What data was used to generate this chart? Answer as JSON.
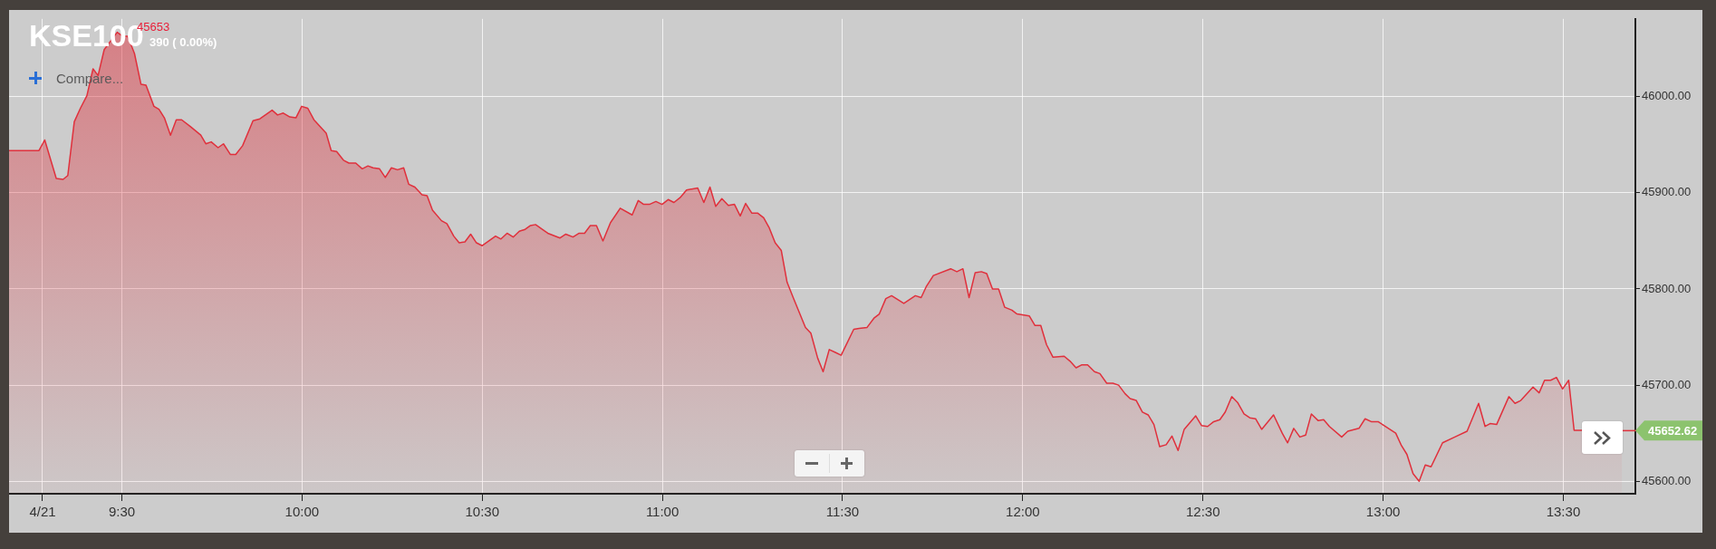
{
  "chart_data": {
    "type": "area",
    "title": "KSE100",
    "subtitle": "45653",
    "annotations": [
      "390 ( 0.00%)",
      "Compare...",
      {
        "text": "45652.62",
        "x": 13.663,
        "y": 45652.62
      }
    ],
    "color": "#e0303c",
    "marker": "none",
    "line_style": "solid",
    "grid": true,
    "xlim": [
      9.187,
      13.7
    ],
    "ylim": [
      45587,
      46081
    ],
    "xticks": [
      {
        "value": 9.28,
        "label": "4/21"
      },
      {
        "value": 9.5,
        "label": "9:30"
      },
      {
        "value": 10,
        "label": "10:00"
      },
      {
        "value": 10.5,
        "label": "10:30"
      },
      {
        "value": 11,
        "label": "11:00"
      },
      {
        "value": 11.5,
        "label": "11:30"
      },
      {
        "value": 12,
        "label": "12:00"
      },
      {
        "value": 12.5,
        "label": "12:30"
      },
      {
        "value": 13,
        "label": "13:00"
      },
      {
        "value": 13.5,
        "label": "13:30"
      }
    ],
    "yticks": [
      {
        "value": 45600,
        "label": "45600.00"
      },
      {
        "value": 45700,
        "label": "45700.00"
      },
      {
        "value": 45800,
        "label": "45800.00"
      },
      {
        "value": 45900,
        "label": "45900.00"
      },
      {
        "value": 46000,
        "label": "46000.00"
      }
    ],
    "x": [
      9.187,
      9.27,
      9.286,
      9.318,
      9.337,
      9.35,
      9.368,
      9.385,
      9.403,
      9.42,
      9.434,
      9.451,
      9.465,
      9.487,
      9.502,
      9.516,
      9.535,
      9.553,
      9.567,
      9.589,
      9.603,
      9.618,
      9.635,
      9.651,
      9.666,
      9.69,
      9.719,
      9.733,
      9.748,
      9.767,
      9.782,
      9.801,
      9.816,
      9.835,
      9.864,
      9.883,
      9.917,
      9.932,
      9.948,
      9.966,
      9.983,
      9.999,
      10.016,
      10.033,
      10.067,
      10.081,
      10.096,
      10.115,
      10.13,
      10.149,
      10.167,
      10.183,
      10.197,
      10.215,
      10.231,
      10.248,
      10.265,
      10.282,
      10.296,
      10.313,
      10.333,
      10.347,
      10.362,
      10.387,
      10.402,
      10.421,
      10.436,
      10.452,
      10.468,
      10.484,
      10.5,
      10.537,
      10.552,
      10.569,
      10.586,
      10.603,
      10.619,
      10.634,
      10.648,
      10.682,
      10.716,
      10.732,
      10.752,
      10.769,
      10.784,
      10.8,
      10.817,
      10.835,
      10.856,
      10.883,
      10.916,
      10.933,
      10.948,
      10.964,
      10.982,
      10.999,
      11.016,
      11.032,
      11.049,
      11.067,
      11.098,
      11.115,
      11.132,
      11.148,
      11.165,
      11.183,
      11.2,
      11.216,
      11.231,
      11.248,
      11.264,
      11.281,
      11.296,
      11.313,
      11.33,
      11.346,
      11.363,
      11.397,
      11.412,
      11.431,
      11.446,
      11.463,
      11.48,
      11.496,
      11.531,
      11.546,
      11.568,
      11.588,
      11.602,
      11.62,
      11.636,
      11.67,
      11.702,
      11.718,
      11.733,
      11.752,
      11.8,
      11.817,
      11.834,
      11.851,
      11.868,
      11.885,
      11.9,
      11.916,
      11.933,
      11.95,
      11.97,
      11.984,
      12.018,
      12.034,
      12.05,
      12.066,
      12.084,
      12.115,
      12.131,
      12.148,
      12.163,
      12.18,
      12.199,
      12.214,
      12.233,
      12.25,
      12.266,
      12.284,
      12.298,
      12.315,
      12.332,
      12.348,
      12.364,
      12.38,
      12.398,
      12.414,
      12.431,
      12.448,
      12.48,
      12.496,
      12.513,
      12.53,
      12.547,
      12.562,
      12.58,
      12.596,
      12.614,
      12.63,
      12.646,
      12.663,
      12.696,
      12.72,
      12.735,
      12.752,
      12.769,
      12.785,
      12.801,
      12.82,
      12.835,
      12.851,
      12.885,
      12.902,
      12.933,
      12.95,
      12.967,
      12.986,
      13.035,
      13.051,
      13.066,
      13.083,
      13.1,
      13.117,
      13.133,
      13.165,
      13.199,
      13.233,
      13.265,
      13.283,
      13.297,
      13.315,
      13.349,
      13.366,
      13.382,
      13.416,
      13.433,
      13.448,
      13.465,
      13.481,
      13.498,
      13.515,
      13.53,
      13.547,
      13.663
    ],
    "values": [
      45944,
      45944,
      45955,
      45915,
      45914,
      45918,
      45974,
      45988,
      46001,
      46029,
      46022,
      46049,
      46056,
      46067,
      46063,
      46063,
      46045,
      46013,
      46012,
      45990,
      45987,
      45978,
      45960,
      45976,
      45976,
      45969,
      45960,
      45951,
      45953,
      45947,
      45951,
      45940,
      45940,
      45949,
      45975,
      45977,
      45986,
      45981,
      45983,
      45979,
      45978,
      45990,
      45988,
      45976,
      45962,
      45944,
      45943,
      45934,
      45931,
      45931,
      45925,
      45928,
      45926,
      45925,
      45916,
      45926,
      45924,
      45926,
      45909,
      45906,
      45898,
      45897,
      45882,
      45871,
      45868,
      45855,
      45848,
      45849,
      45857,
      45848,
      45845,
      45855,
      45852,
      45858,
      45854,
      45860,
      45862,
      45866,
      45867,
      45858,
      45853,
      45857,
      45854,
      45858,
      45858,
      45866,
      45866,
      45850,
      45869,
      45884,
      45877,
      45892,
      45888,
      45888,
      45891,
      45888,
      45893,
      45890,
      45895,
      45903,
      45905,
      45890,
      45906,
      45886,
      45894,
      45887,
      45888,
      45876,
      45889,
      45879,
      45879,
      45874,
      45864,
      45848,
      45840,
      45807,
      45791,
      45760,
      45754,
      45728,
      45714,
      45737,
      45734,
      45731,
      45758,
      45759,
      45760,
      45770,
      45774,
      45790,
      45793,
      45785,
      45793,
      45791,
      45803,
      45814,
      45821,
      45818,
      45821,
      45791,
      45817,
      45818,
      45816,
      45800,
      45800,
      45781,
      45778,
      45774,
      45772,
      45762,
      45762,
      45742,
      45729,
      45730,
      45725,
      45718,
      45721,
      45721,
      45714,
      45712,
      45702,
      45702,
      45700,
      45691,
      45686,
      45684,
      45672,
      45669,
      45659,
      45636,
      45638,
      45647,
      45632,
      45654,
      45668,
      45658,
      45657,
      45662,
      45664,
      45672,
      45688,
      45682,
      45670,
      45666,
      45665,
      45654,
      45669,
      45650,
      45640,
      45655,
      45646,
      45648,
      45670,
      45663,
      45664,
      45657,
      45646,
      45652,
      45655,
      45665,
      45662,
      45662,
      45650,
      45637,
      45628,
      45608,
      45600,
      45617,
      45615,
      45640,
      45646,
      45652,
      45681,
      45657,
      45660,
      45659,
      45688,
      45681,
      45684,
      45698,
      45692,
      45705,
      45705,
      45708,
      45696,
      45705,
      45653,
      45653,
      45653
    ]
  }
}
